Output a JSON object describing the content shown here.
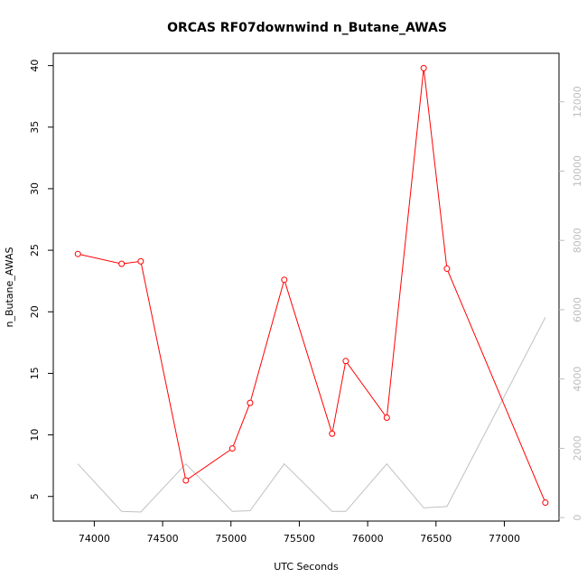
{
  "chart_data": {
    "type": "line",
    "title": "ORCAS RF07downwind n_Butane_AWAS",
    "xlabel": "UTC Seconds",
    "ylabel": "n_Butane_AWAS",
    "xlim": [
      73700,
      77400
    ],
    "ylim": [
      3,
      41
    ],
    "y2lim": [
      -100,
      13400
    ],
    "x_ticks": [
      74000,
      74500,
      75000,
      75500,
      76000,
      76500,
      77000
    ],
    "y_ticks": [
      5,
      10,
      15,
      20,
      25,
      30,
      35,
      40
    ],
    "y2_ticks": [
      0,
      2000,
      4000,
      6000,
      8000,
      10000,
      12000
    ],
    "grid": false,
    "colors": {
      "primary": "#ff0000",
      "secondary": "#c0c0c0",
      "axis": "#000000",
      "secondary_tick": "#bdbdbd"
    },
    "series": [
      {
        "axis": "left",
        "marker": "open-circle",
        "x": [
          73880,
          74200,
          74340,
          74670,
          75010,
          75140,
          75390,
          75740,
          75840,
          76140,
          76410,
          76580,
          77300
        ],
        "y": [
          24.7,
          23.9,
          24.1,
          6.3,
          8.9,
          12.6,
          22.6,
          10.1,
          16.0,
          11.4,
          39.8,
          23.5,
          4.5
        ]
      },
      {
        "axis": "right",
        "marker": "none",
        "x": [
          73880,
          74200,
          74340,
          74670,
          75010,
          75140,
          75390,
          75740,
          75840,
          76140,
          76410,
          76580,
          77300
        ],
        "y": [
          1550,
          180,
          160,
          1550,
          180,
          200,
          1550,
          180,
          180,
          1550,
          280,
          320,
          5780
        ]
      }
    ]
  }
}
